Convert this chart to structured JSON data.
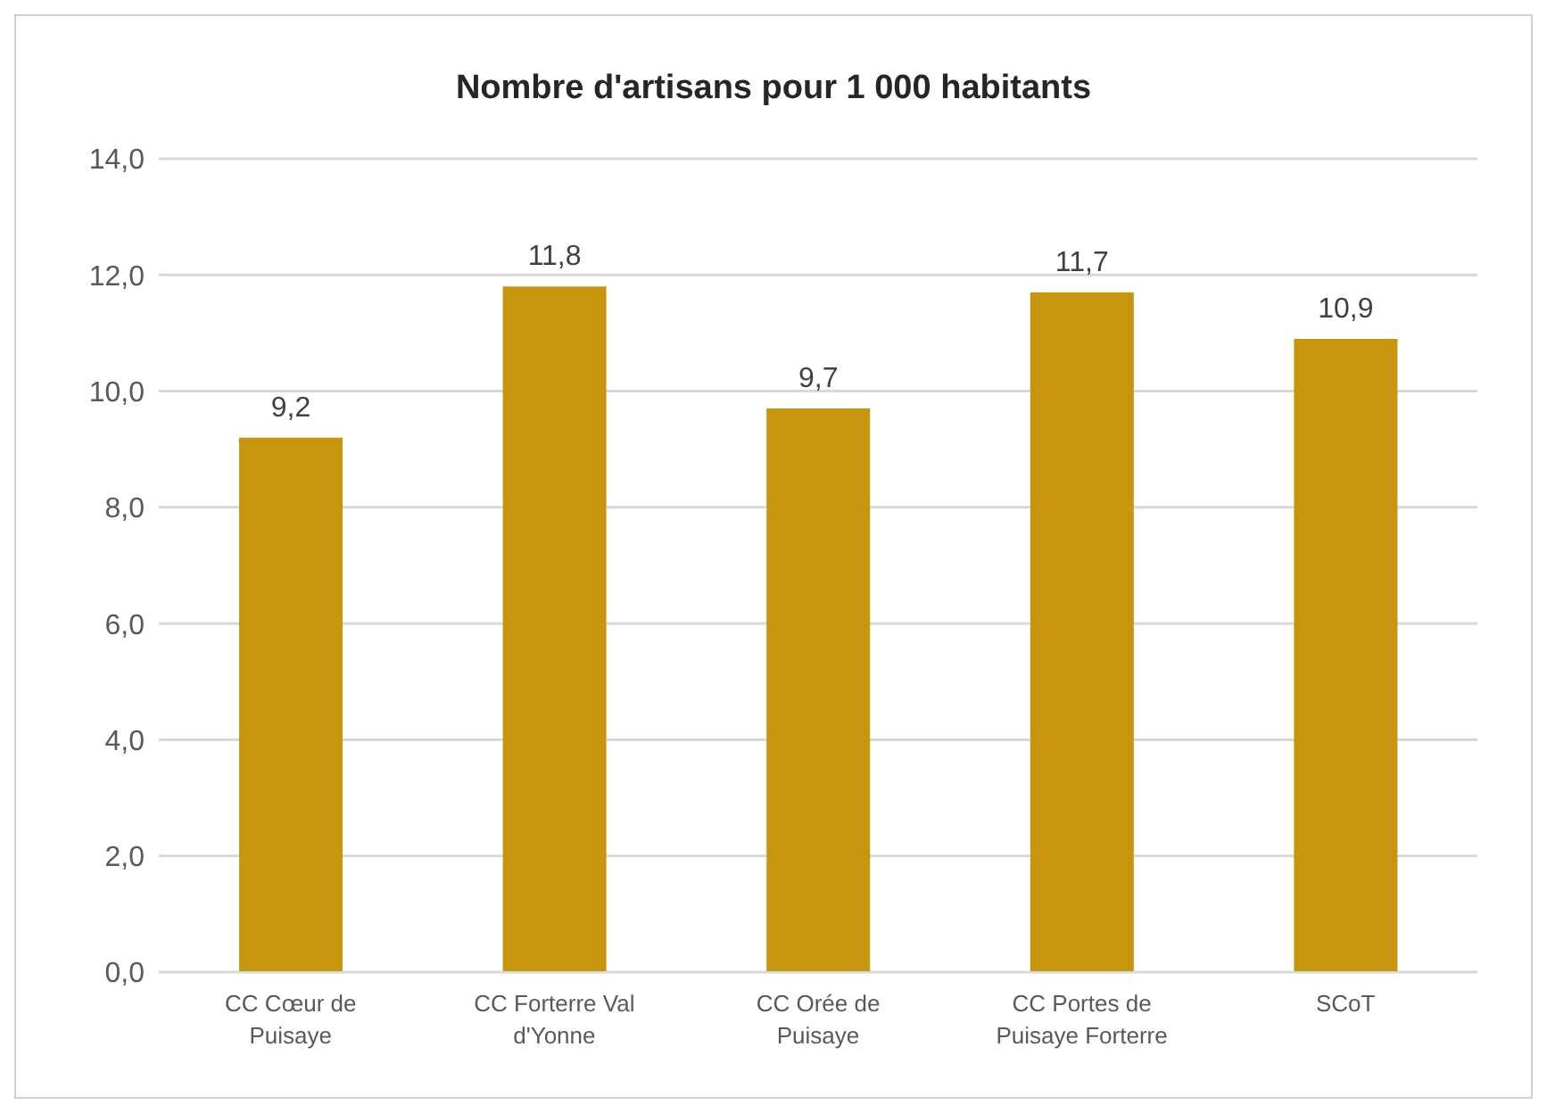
{
  "chart_data": {
    "type": "bar",
    "title": "Nombre d'artisans pour 1 000 habitants",
    "categories": [
      "CC Cœur de Puisaye",
      "CC Forterre Val d'Yonne",
      "CC Orée de Puisaye",
      "CC Portes de Puisaye Forterre",
      "SCoT"
    ],
    "values": [
      9.2,
      11.8,
      9.7,
      11.7,
      10.9
    ],
    "value_labels": [
      "9,2",
      "11,8",
      "9,7",
      "11,7",
      "10,9"
    ],
    "color": "#c8950e",
    "ylim": [
      0,
      14
    ],
    "yticks": [
      {
        "value": 0,
        "label": "0,0"
      },
      {
        "value": 2,
        "label": "2,0"
      },
      {
        "value": 4,
        "label": "4,0"
      },
      {
        "value": 6,
        "label": "6,0"
      },
      {
        "value": 8,
        "label": "8,0"
      },
      {
        "value": 10,
        "label": "10,0"
      },
      {
        "value": 12,
        "label": "12,0"
      },
      {
        "value": 14,
        "label": "14,0"
      }
    ],
    "grid": "y"
  }
}
